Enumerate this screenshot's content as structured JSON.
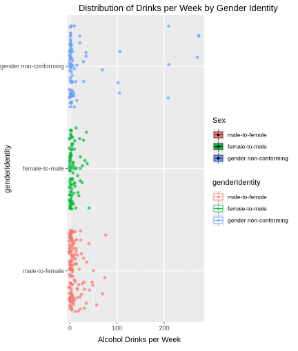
{
  "chart_data": {
    "type": "scatter",
    "title": "Distribution of Drinks per Week by Gender Identity",
    "xlabel": "Alcohol Drinks per Week",
    "ylabel": "genderIdentity",
    "xlim": [
      -5,
      285
    ],
    "x_ticks": [
      0,
      100,
      200
    ],
    "categories": [
      "male-to-female",
      "female-to-male",
      "gender non-conforming"
    ],
    "grid": true,
    "legend_position": "right",
    "legends": [
      {
        "title": "Sex",
        "style": "boxplot",
        "entries": [
          "male-to-female",
          "female-to-male",
          "gender non-conforming"
        ]
      },
      {
        "title": "genderIdentity",
        "style": "point",
        "entries": [
          "male-to-female",
          "female-to-male",
          "gender non-conforming"
        ]
      }
    ],
    "series": [
      {
        "category": "gender non-conforming",
        "color": "#619CFF",
        "x": [
          0,
          0,
          0,
          0,
          0,
          0,
          0,
          0,
          0,
          0,
          0,
          0,
          0,
          0,
          0,
          0,
          0,
          0,
          0,
          0,
          1,
          1,
          1,
          1,
          1,
          1,
          1,
          1,
          1,
          1,
          2,
          2,
          2,
          2,
          2,
          2,
          2,
          2,
          2,
          3,
          3,
          3,
          3,
          3,
          3,
          3,
          4,
          4,
          4,
          4,
          5,
          5,
          5,
          5,
          6,
          6,
          6,
          7,
          7,
          8,
          8,
          10,
          10,
          12,
          14,
          14,
          20,
          21,
          28,
          30,
          35,
          35,
          70,
          100,
          105,
          105,
          210,
          210,
          210,
          270,
          275,
          275
        ]
      },
      {
        "category": "female-to-male",
        "color": "#00BA38",
        "x": [
          0,
          0,
          0,
          0,
          0,
          0,
          0,
          0,
          0,
          0,
          0,
          0,
          0,
          0,
          0,
          0,
          0,
          0,
          0,
          0,
          1,
          1,
          1,
          1,
          1,
          1,
          1,
          1,
          1,
          1,
          1,
          1,
          2,
          2,
          2,
          2,
          2,
          2,
          2,
          2,
          2,
          2,
          3,
          3,
          3,
          3,
          3,
          3,
          3,
          3,
          4,
          4,
          4,
          4,
          4,
          4,
          5,
          5,
          5,
          5,
          5,
          6,
          6,
          6,
          7,
          7,
          7,
          8,
          8,
          9,
          10,
          10,
          10,
          12,
          12,
          14,
          14,
          15,
          15,
          18,
          20,
          20,
          21,
          21,
          25,
          28,
          30,
          30,
          35,
          35,
          40
        ]
      },
      {
        "category": "male-to-female",
        "color": "#F8766D",
        "x": [
          0,
          0,
          0,
          0,
          0,
          0,
          0,
          0,
          0,
          0,
          0,
          0,
          0,
          0,
          0,
          0,
          0,
          0,
          0,
          0,
          0,
          0,
          0,
          0,
          0,
          0,
          0,
          0,
          1,
          1,
          1,
          1,
          1,
          1,
          1,
          1,
          1,
          1,
          1,
          1,
          1,
          1,
          1,
          1,
          1,
          2,
          2,
          2,
          2,
          2,
          2,
          2,
          2,
          2,
          2,
          2,
          2,
          2,
          2,
          3,
          3,
          3,
          3,
          3,
          3,
          3,
          3,
          3,
          3,
          3,
          4,
          4,
          4,
          4,
          4,
          4,
          4,
          4,
          5,
          5,
          5,
          5,
          5,
          5,
          5,
          5,
          6,
          6,
          6,
          6,
          6,
          6,
          7,
          7,
          7,
          7,
          7,
          8,
          8,
          8,
          8,
          9,
          9,
          10,
          10,
          10,
          10,
          10,
          10,
          12,
          12,
          12,
          14,
          14,
          14,
          15,
          15,
          15,
          18,
          18,
          20,
          20,
          20,
          20,
          21,
          21,
          24,
          25,
          25,
          28,
          30,
          30,
          30,
          35,
          35,
          40,
          40,
          45,
          50,
          50,
          55,
          70,
          75,
          75
        ]
      }
    ]
  }
}
